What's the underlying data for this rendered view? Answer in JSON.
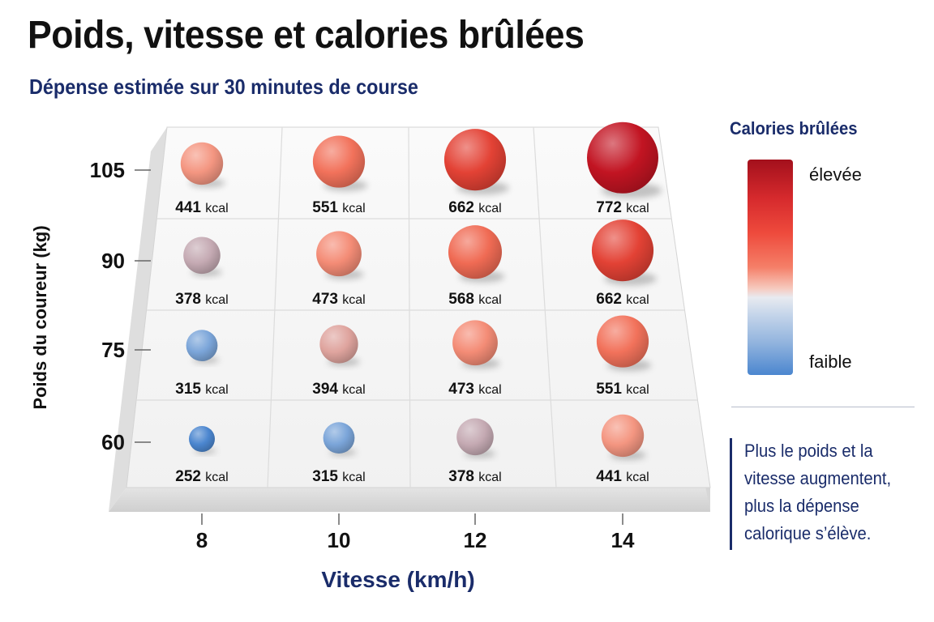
{
  "title": "Poids, vitesse et calories brûlées",
  "subtitle": "Dépense estimée sur 30 minutes de course",
  "legend": {
    "title": "Calories brûlées",
    "high_label": "élevée",
    "low_label": "faible",
    "colors": [
      "#a3101c",
      "#ee4a3c",
      "#f57f68",
      "#e8eaf0",
      "#92b4de",
      "#4b86cf"
    ]
  },
  "note": "Plus le poids et la vitesse augmentent, plus la dépense calorique s’élève.",
  "chart_data": {
    "type": "scatter",
    "x": [
      8,
      10,
      12,
      14
    ],
    "y": [
      105,
      90,
      75,
      60
    ],
    "xlabel": "Vitesse (km/h)",
    "ylabel": "Poids du coureur (kg)",
    "unit": "kcal",
    "values": [
      [
        441,
        551,
        662,
        772
      ],
      [
        378,
        473,
        568,
        662
      ],
      [
        315,
        394,
        473,
        551
      ],
      [
        252,
        315,
        378,
        441
      ]
    ]
  }
}
